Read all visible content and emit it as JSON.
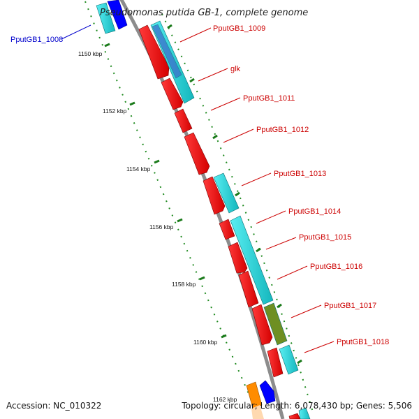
{
  "map": {
    "title": "Pseudomonas putida GB-1, complete genome",
    "accession": "Accession: NC_010322",
    "topology": "Topology: circular; Length: 6,078,430 bp; Genes: 5,506"
  },
  "ticks": [
    "1150 kbp",
    "1152 kbp",
    "1154 kbp",
    "1156 kbp",
    "1158 kbp",
    "1160 kbp",
    "1162 kbp"
  ],
  "gene_labels": [
    {
      "name": "PputGB1_1008",
      "color": "#0000cc"
    },
    {
      "name": "PputGB1_1009",
      "color": "#cc0000"
    },
    {
      "name": "glk",
      "color": "#cc0000"
    },
    {
      "name": "PputGB1_1011",
      "color": "#cc0000"
    },
    {
      "name": "PputGB1_1012",
      "color": "#cc0000"
    },
    {
      "name": "PputGB1_1013",
      "color": "#cc0000"
    },
    {
      "name": "PputGB1_1014",
      "color": "#cc0000"
    },
    {
      "name": "PputGB1_1015",
      "color": "#cc0000"
    },
    {
      "name": "PputGB1_1016",
      "color": "#cc0000"
    },
    {
      "name": "PputGB1_1017",
      "color": "#cc0000"
    },
    {
      "name": "PputGB1_1018",
      "color": "#cc0000"
    }
  ],
  "colors": {
    "cds": "#ff1a1a",
    "feature_cyan": "#22d3d8",
    "feature_olive": "#6e8f22",
    "feature_blue": "#0000ff",
    "feature_orange": "#ff8c00",
    "backbone": "#8c8c8c",
    "tick_marks": "#1a7a1a"
  }
}
